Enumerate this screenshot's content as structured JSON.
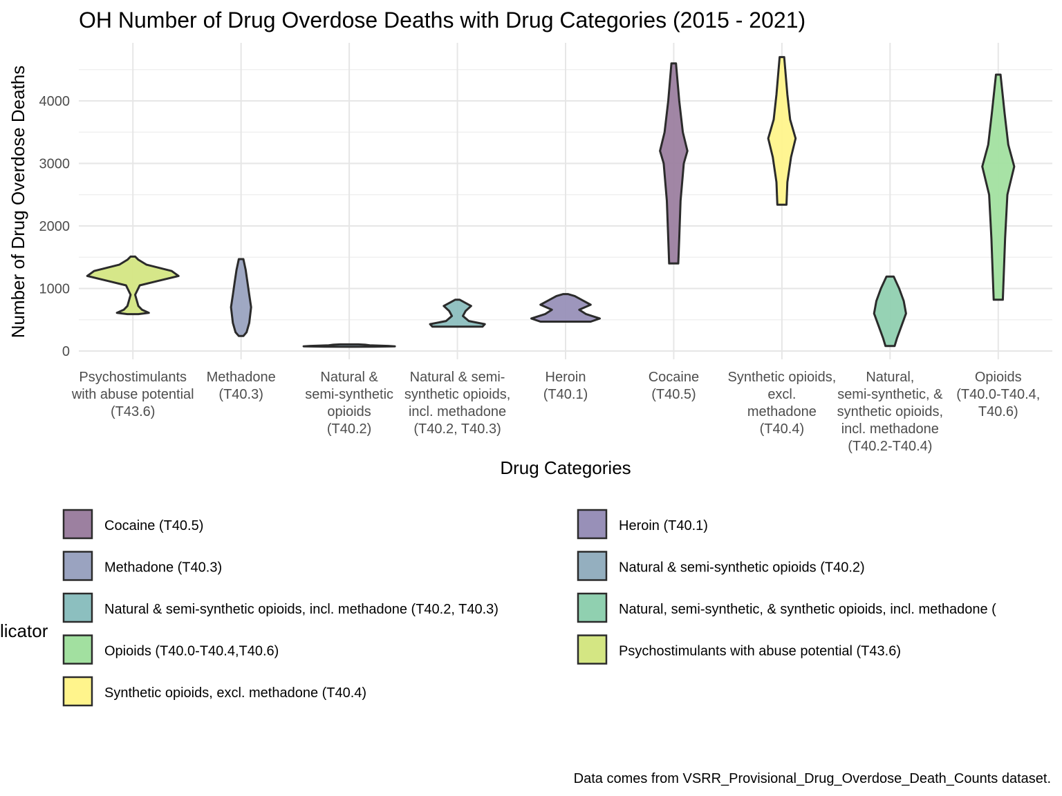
{
  "chart_data": {
    "type": "violin",
    "title": "OH Number of Drug Overdose Deaths with Drug Categories (2015 - 2021)",
    "xlabel": "Drug Categories",
    "ylabel": "Number of Drug Overdose Deaths",
    "ylim": [
      0,
      4900
    ],
    "yticks": [
      0,
      1000,
      2000,
      3000,
      4000
    ],
    "y_tick_labels": [
      "0",
      "1000",
      "2000",
      "3000",
      "4000"
    ],
    "grid": true,
    "categories": [
      {
        "label_lines": [
          "Psychostimulants",
          "with abuse potential",
          "(T43.6)"
        ],
        "fill": "#d4e683",
        "profile": [
          [
            590,
            0.12
          ],
          [
            610,
            0.35
          ],
          [
            660,
            0.2
          ],
          [
            720,
            0.12
          ],
          [
            900,
            0.05
          ],
          [
            1050,
            0.15
          ],
          [
            1120,
            0.55
          ],
          [
            1200,
            1.0
          ],
          [
            1280,
            0.85
          ],
          [
            1380,
            0.3
          ],
          [
            1460,
            0.12
          ],
          [
            1510,
            0.05
          ]
        ]
      },
      {
        "label_lines": [
          "Methadone",
          "(T40.3)"
        ],
        "fill": "#9aa3c0",
        "profile": [
          [
            240,
            0.05
          ],
          [
            300,
            0.12
          ],
          [
            450,
            0.18
          ],
          [
            700,
            0.22
          ],
          [
            900,
            0.18
          ],
          [
            1100,
            0.14
          ],
          [
            1300,
            0.1
          ],
          [
            1470,
            0.05
          ]
        ]
      },
      {
        "label_lines": [
          "Natural &",
          "semi-synthetic",
          "opioids",
          "(T40.2)"
        ],
        "fill": "#94afbf",
        "profile": [
          [
            68,
            0.55
          ],
          [
            75,
            1.0
          ],
          [
            82,
            0.85
          ],
          [
            92,
            0.45
          ],
          [
            100,
            0.35
          ],
          [
            106,
            0.2
          ]
        ]
      },
      {
        "label_lines": [
          "Natural & semi-",
          "synthetic opioids,",
          "incl. methadone",
          "(T40.2, T40.3)"
        ],
        "fill": "#8cbfbf",
        "profile": [
          [
            390,
            0.55
          ],
          [
            430,
            0.6
          ],
          [
            480,
            0.25
          ],
          [
            560,
            0.12
          ],
          [
            640,
            0.18
          ],
          [
            720,
            0.3
          ],
          [
            780,
            0.15
          ],
          [
            820,
            0.05
          ]
        ]
      },
      {
        "label_lines": [
          "Heroin",
          "(T40.1)"
        ],
        "fill": "#9890b8",
        "profile": [
          [
            470,
            0.55
          ],
          [
            520,
            0.75
          ],
          [
            590,
            0.45
          ],
          [
            660,
            0.3
          ],
          [
            740,
            0.55
          ],
          [
            820,
            0.35
          ],
          [
            880,
            0.2
          ],
          [
            910,
            0.05
          ]
        ]
      },
      {
        "label_lines": [
          "Cocaine",
          "(T40.5)"
        ],
        "fill": "#9c80a0",
        "profile": [
          [
            1400,
            0.1
          ],
          [
            1800,
            0.12
          ],
          [
            2400,
            0.15
          ],
          [
            3000,
            0.22
          ],
          [
            3200,
            0.3
          ],
          [
            3500,
            0.2
          ],
          [
            4000,
            0.12
          ],
          [
            4600,
            0.05
          ]
        ]
      },
      {
        "label_lines": [
          "Synthetic opioids,",
          "excl.",
          "methadone",
          "(T40.4)"
        ],
        "fill": "#fff48c",
        "profile": [
          [
            2340,
            0.1
          ],
          [
            2700,
            0.12
          ],
          [
            3100,
            0.2
          ],
          [
            3400,
            0.3
          ],
          [
            3700,
            0.18
          ],
          [
            4100,
            0.12
          ],
          [
            4700,
            0.05
          ]
        ]
      },
      {
        "label_lines": [
          "Natural,",
          "semi-synthetic, &",
          "synthetic opioids,",
          "incl. methadone",
          "(T40.2-T40.4)"
        ],
        "fill": "#90d0b0",
        "profile": [
          [
            80,
            0.1
          ],
          [
            200,
            0.15
          ],
          [
            400,
            0.25
          ],
          [
            600,
            0.35
          ],
          [
            800,
            0.3
          ],
          [
            1000,
            0.2
          ],
          [
            1190,
            0.08
          ]
        ]
      },
      {
        "label_lines": [
          "Opioids",
          "(T40.0-T40.4,",
          "T40.6)"
        ],
        "fill": "#a2e0a0",
        "profile": [
          [
            820,
            0.1
          ],
          [
            1200,
            0.12
          ],
          [
            1800,
            0.15
          ],
          [
            2500,
            0.2
          ],
          [
            2950,
            0.35
          ],
          [
            3300,
            0.22
          ],
          [
            3800,
            0.14
          ],
          [
            4420,
            0.05
          ]
        ]
      }
    ],
    "legend": {
      "title": "Indicator",
      "title_visible": "licator",
      "placement": "bottom",
      "entries": [
        {
          "label": "Cocaine (T40.5)",
          "color": "#9c80a0"
        },
        {
          "label": "Heroin (T40.1)",
          "color": "#9890b8"
        },
        {
          "label": "Methadone (T40.3)",
          "color": "#9aa3c0"
        },
        {
          "label": "Natural & semi-synthetic opioids (T40.2)",
          "color": "#94afbf"
        },
        {
          "label": "Natural & semi-synthetic opioids, incl. methadone (T40.2, T40.3)",
          "color": "#8cbfbf"
        },
        {
          "label": "Natural, semi-synthetic, & synthetic opioids, incl. methadone (",
          "color": "#90d0b0"
        },
        {
          "label": "Opioids (T40.0-T40.4,T40.6)",
          "color": "#a2e0a0"
        },
        {
          "label": "Psychostimulants with abuse potential (T43.6)",
          "color": "#d4e683"
        },
        {
          "label": "Synthetic opioids, excl. methadone (T40.4)",
          "color": "#fff48c"
        }
      ]
    },
    "caption": "Data comes from VSRR_Provisional_Drug_Overdose_Death_Counts dataset."
  }
}
